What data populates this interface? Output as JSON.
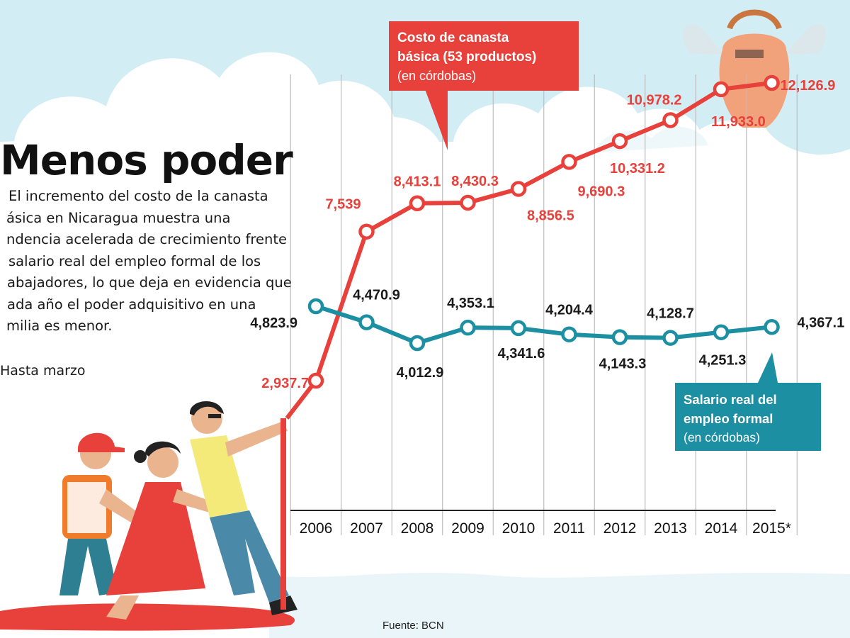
{
  "headline": {
    "title": "Menos poder",
    "body_lines": [
      "El incremento del costo de la canasta",
      "ásica en Nicaragua muestra una",
      "ndencia acelerada de crecimiento frente",
      "salario real del empleo formal de los",
      "abajadores, lo que deja en evidencia que",
      "ada año el poder adquisitivo en una",
      "milia es menor."
    ],
    "footnote": "Hasta marzo"
  },
  "callouts": {
    "canasta": {
      "line1": "Costo de canasta",
      "line2": "básica (53 productos)",
      "line3": "(en córdobas)"
    },
    "salario": {
      "line1": "Salario real del",
      "line2": "empleo formal",
      "line3": "(en córdobas)"
    }
  },
  "source": "Fuente: BCN",
  "colors": {
    "canasta": "#e8403a",
    "salario": "#1d8fa3",
    "sky": "#cfeaf2",
    "grid": "#bdbdbd"
  },
  "illustration": {
    "people": [
      "worker-with-helmet-icon",
      "woman-in-red-dress-icon",
      "man-with-glasses-icon"
    ],
    "basket": "flying-basket-with-wings-icon"
  },
  "chart_data": {
    "type": "line",
    "categories": [
      "2006",
      "2007",
      "2008",
      "2009",
      "2010",
      "2011",
      "2012",
      "2013",
      "2014",
      "2015*"
    ],
    "series": [
      {
        "name": "Costo de canasta básica (53 productos) (en córdobas)",
        "values": [
          2937.7,
          7539,
          8413.1,
          8430.3,
          8856.5,
          9690.3,
          10331.2,
          10978.2,
          11933.0,
          12126.9
        ],
        "labels": [
          "2,937.7",
          "7,539",
          "8,413.1",
          "8,430.3",
          "8,856.5",
          "9,690.3",
          "10,331.2",
          "10,978.2",
          "11,933.0",
          "12,126.9"
        ]
      },
      {
        "name": "Salario real del empleo formal (en córdobas)",
        "values": [
          4823.9,
          4470.9,
          4012.9,
          4353.1,
          4341.6,
          4204.4,
          4143.3,
          4128.7,
          4251.3,
          4367.1
        ],
        "labels": [
          "4,823.9",
          "4,470.9",
          "4,012.9",
          "4,353.1",
          "4,341.6",
          "4,204.4",
          "4,143.3",
          "4,128.7",
          "4,251.3",
          "4,367.1"
        ]
      }
    ],
    "title": "",
    "xlabel": "",
    "ylabel": "",
    "grid": true
  }
}
